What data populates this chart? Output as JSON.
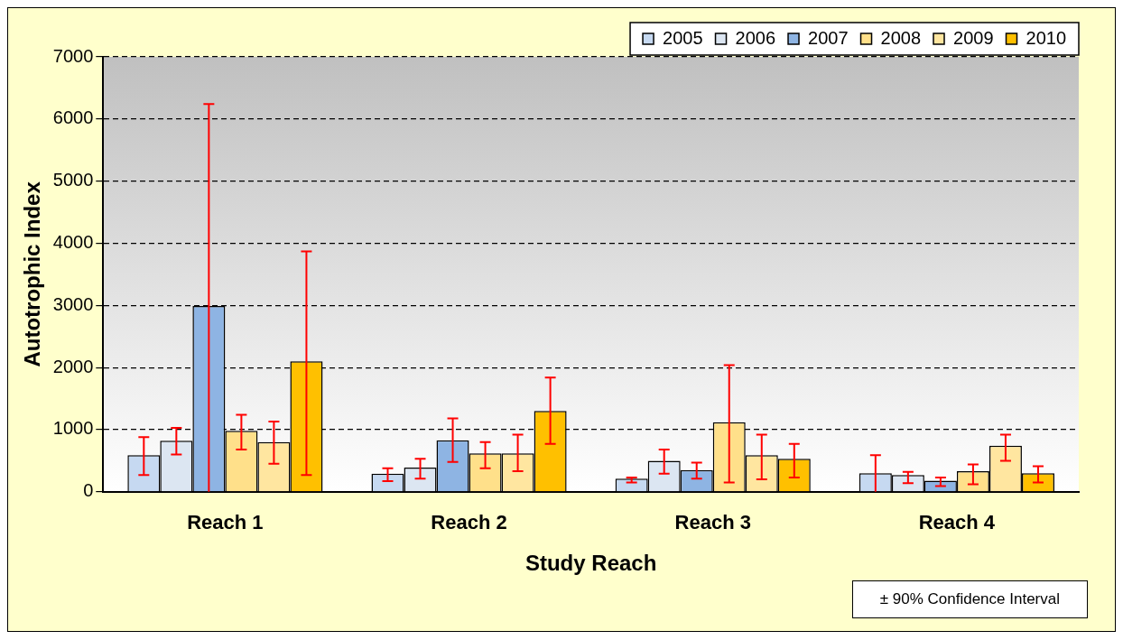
{
  "chart_data": {
    "type": "bar",
    "xlabel": "Study Reach",
    "ylabel": "Autotrophic Index",
    "categories": [
      "Reach 1",
      "Reach 2",
      "Reach 3",
      "Reach 4"
    ],
    "series": [
      {
        "name": "2005",
        "color": "#c6d9f1",
        "values": [
          590,
          290,
          210,
          300
        ],
        "errors": [
          [
            270,
            880
          ],
          [
            170,
            380
          ],
          [
            150,
            230
          ],
          [
            0,
            590
          ]
        ]
      },
      {
        "name": "2006",
        "color": "#dce6f2",
        "values": [
          820,
          390,
          500,
          270
        ],
        "errors": [
          [
            600,
            1030
          ],
          [
            210,
            530
          ],
          [
            290,
            680
          ],
          [
            140,
            320
          ]
        ]
      },
      {
        "name": "2007",
        "color": "#8eb4e3",
        "values": [
          2990,
          830,
          350,
          180
        ],
        "errors": [
          [
            0,
            6240
          ],
          [
            480,
            1180
          ],
          [
            210,
            470
          ],
          [
            90,
            230
          ]
        ]
      },
      {
        "name": "2008",
        "color": "#ffe08a",
        "values": [
          980,
          620,
          1120,
          330
        ],
        "errors": [
          [
            680,
            1240
          ],
          [
            380,
            800
          ],
          [
            150,
            2040
          ],
          [
            120,
            440
          ]
        ]
      },
      {
        "name": "2009",
        "color": "#ffe6a0",
        "values": [
          800,
          620,
          590,
          740
        ],
        "errors": [
          [
            450,
            1130
          ],
          [
            330,
            920
          ],
          [
            200,
            920
          ],
          [
            500,
            920
          ]
        ]
      },
      {
        "name": "2010",
        "color": "#ffc000",
        "values": [
          2100,
          1300,
          530,
          300
        ],
        "errors": [
          [
            270,
            3870
          ],
          [
            770,
            1840
          ],
          [
            230,
            770
          ],
          [
            150,
            410
          ]
        ]
      }
    ],
    "ylim": [
      0,
      7000
    ],
    "yticks": [
      0,
      1000,
      2000,
      3000,
      4000,
      5000,
      6000,
      7000
    ],
    "grid": "y",
    "legend": "top right",
    "annotations": [
      "± 90% Confidence Interval"
    ]
  }
}
